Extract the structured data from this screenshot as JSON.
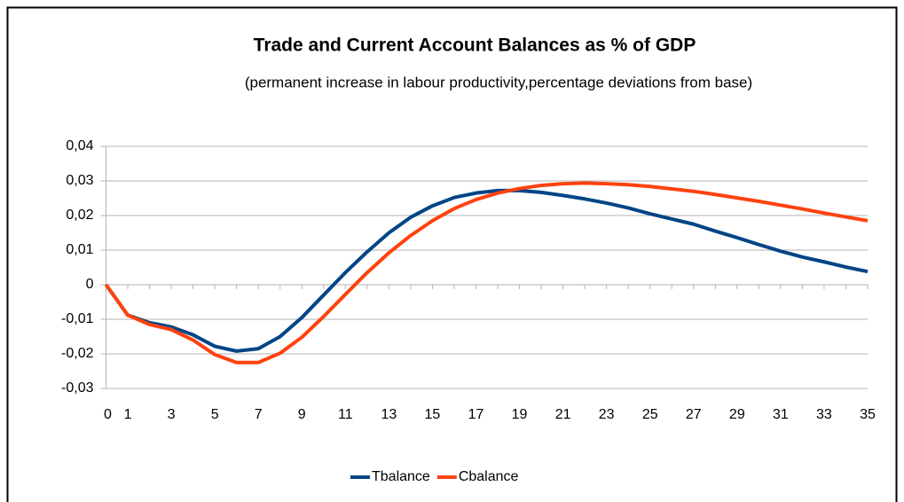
{
  "chart_data": {
    "type": "line",
    "title": "Trade and Current Account Balances as % of GDP",
    "subtitle": "(permanent increase in labour productivity,percentage deviations from base)",
    "categories": [
      "0",
      "1",
      null,
      "3",
      null,
      "5",
      null,
      "7",
      null,
      "9",
      null,
      "11",
      null,
      "13",
      null,
      "15",
      null,
      "17",
      null,
      "19",
      null,
      "21",
      null,
      "23",
      null,
      "25",
      null,
      "27",
      null,
      "29",
      null,
      "31",
      null,
      "33",
      null,
      "35"
    ],
    "series": [
      {
        "name": "Tbalance",
        "color": "#004586",
        "values": [
          0,
          -0.0088,
          -0.011,
          -0.0122,
          -0.0145,
          -0.0178,
          -0.0192,
          -0.0185,
          -0.015,
          -0.0095,
          -0.003,
          0.0035,
          0.0095,
          0.015,
          0.0195,
          0.0228,
          0.0252,
          0.0265,
          0.0272,
          0.0272,
          0.0267,
          0.0258,
          0.0248,
          0.0236,
          0.0222,
          0.0205,
          0.019,
          0.0175,
          0.0155,
          0.0136,
          0.0116,
          0.0097,
          0.008,
          0.0066,
          0.0051,
          0.0038
        ]
      },
      {
        "name": "Cbalance",
        "color": "#ff420e",
        "values": [
          0,
          -0.0088,
          -0.0115,
          -0.013,
          -0.016,
          -0.0202,
          -0.0225,
          -0.0225,
          -0.0198,
          -0.0152,
          -0.0092,
          -0.0028,
          0.0035,
          0.0092,
          0.0142,
          0.0185,
          0.022,
          0.0246,
          0.0265,
          0.0278,
          0.0287,
          0.0292,
          0.0294,
          0.0292,
          0.0289,
          0.0284,
          0.0277,
          0.027,
          0.0261,
          0.0251,
          0.0241,
          0.023,
          0.0219,
          0.0207,
          0.0196,
          0.0185
        ]
      }
    ],
    "ylim": [
      -0.03,
      0.04
    ],
    "yticks": [
      {
        "value": -0.03,
        "label": "-0,03"
      },
      {
        "value": -0.02,
        "label": "-0,02"
      },
      {
        "value": -0.01,
        "label": "-0,01"
      },
      0,
      {
        "value": 0.01,
        "label": "0,01"
      },
      {
        "value": 0.02,
        "label": "0,02"
      },
      {
        "value": 0.03,
        "label": "0,03"
      },
      {
        "value": 0.04,
        "label": "0,04"
      }
    ],
    "grid": true,
    "legend": "bottom"
  }
}
